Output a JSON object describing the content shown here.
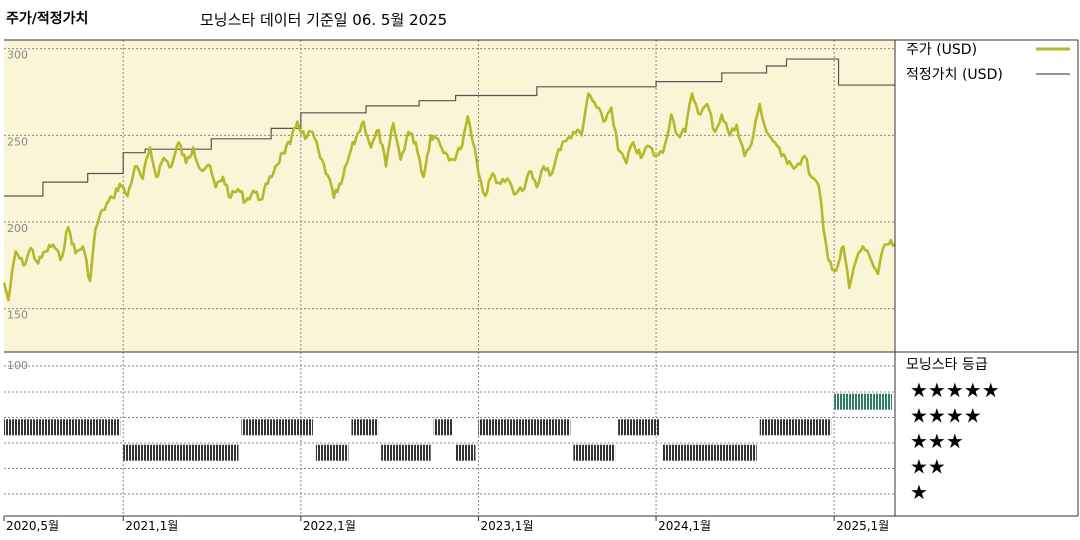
{
  "header": {
    "left_title": "주가/적정가치",
    "main_title": "모닝스타 데이터 기준일 06. 5월 2025"
  },
  "legend": {
    "price_label": "주가 (USD)",
    "fair_label": "적정가치 (USD)",
    "rating_title": "모닝스타 등급"
  },
  "colors": {
    "price": "#b5b82a",
    "fair": "#555555",
    "upper_bg": "#faf5d6",
    "rating_bar": "#333333",
    "rating_five": "#2e7d62"
  },
  "chart_data": {
    "type": "line",
    "x_range": [
      "2020-05-01",
      "2025-05-06"
    ],
    "x_ticks": [
      "2020,5월",
      "2021,1월",
      "2022,1월",
      "2023,1월",
      "2024,1월",
      "2025,1월"
    ],
    "y_range": [
      125,
      305
    ],
    "y_ticks": [
      300,
      250,
      200,
      150
    ],
    "grid": true,
    "legend_position": "top-right",
    "price": [
      [
        "2020-05-01",
        165
      ],
      [
        "2020-05-10",
        155
      ],
      [
        "2020-05-25",
        183
      ],
      [
        "2020-06-10",
        175
      ],
      [
        "2020-06-25",
        185
      ],
      [
        "2020-07-10",
        176
      ],
      [
        "2020-07-25",
        183
      ],
      [
        "2020-08-10",
        187
      ],
      [
        "2020-08-25",
        178
      ],
      [
        "2020-09-10",
        197
      ],
      [
        "2020-09-25",
        182
      ],
      [
        "2020-10-10",
        186
      ],
      [
        "2020-10-25",
        166
      ],
      [
        "2020-11-05",
        196
      ],
      [
        "2020-11-20",
        207
      ],
      [
        "2020-12-10",
        214
      ],
      [
        "2020-12-25",
        222
      ],
      [
        "2021-01-10",
        215
      ],
      [
        "2021-01-25",
        232
      ],
      [
        "2021-02-10",
        225
      ],
      [
        "2021-02-25",
        243
      ],
      [
        "2021-03-10",
        226
      ],
      [
        "2021-03-25",
        237
      ],
      [
        "2021-04-10",
        232
      ],
      [
        "2021-04-25",
        246
      ],
      [
        "2021-05-10",
        234
      ],
      [
        "2021-05-25",
        243
      ],
      [
        "2021-06-10",
        230
      ],
      [
        "2021-06-25",
        233
      ],
      [
        "2021-07-10",
        220
      ],
      [
        "2021-07-25",
        226
      ],
      [
        "2021-08-10",
        214
      ],
      [
        "2021-08-25",
        219
      ],
      [
        "2021-09-10",
        212
      ],
      [
        "2021-09-25",
        218
      ],
      [
        "2021-10-10",
        213
      ],
      [
        "2021-10-25",
        222
      ],
      [
        "2021-11-10",
        232
      ],
      [
        "2021-11-25",
        240
      ],
      [
        "2021-12-10",
        245
      ],
      [
        "2021-12-25",
        258
      ],
      [
        "2022-01-10",
        248
      ],
      [
        "2022-01-25",
        252
      ],
      [
        "2022-02-10",
        237
      ],
      [
        "2022-02-25",
        227
      ],
      [
        "2022-03-10",
        214
      ],
      [
        "2022-03-25",
        222
      ],
      [
        "2022-04-10",
        238
      ],
      [
        "2022-04-25",
        249
      ],
      [
        "2022-05-10",
        258
      ],
      [
        "2022-05-25",
        243
      ],
      [
        "2022-06-10",
        253
      ],
      [
        "2022-06-25",
        232
      ],
      [
        "2022-07-10",
        257
      ],
      [
        "2022-07-25",
        236
      ],
      [
        "2022-08-10",
        252
      ],
      [
        "2022-08-25",
        246
      ],
      [
        "2022-09-10",
        226
      ],
      [
        "2022-09-25",
        250
      ],
      [
        "2022-10-10",
        248
      ],
      [
        "2022-10-25",
        240
      ],
      [
        "2022-11-10",
        236
      ],
      [
        "2022-11-25",
        242
      ],
      [
        "2022-12-10",
        261
      ],
      [
        "2022-12-25",
        242
      ],
      [
        "2023-01-01",
        228
      ],
      [
        "2023-01-15",
        215
      ],
      [
        "2023-01-30",
        228
      ],
      [
        "2023-02-15",
        222
      ],
      [
        "2023-03-01",
        225
      ],
      [
        "2023-03-15",
        216
      ],
      [
        "2023-04-01",
        218
      ],
      [
        "2023-04-15",
        229
      ],
      [
        "2023-05-01",
        220
      ],
      [
        "2023-05-15",
        232
      ],
      [
        "2023-06-01",
        228
      ],
      [
        "2023-06-15",
        242
      ],
      [
        "2023-07-01",
        247
      ],
      [
        "2023-07-15",
        252
      ],
      [
        "2023-08-01",
        250
      ],
      [
        "2023-08-15",
        274
      ],
      [
        "2023-09-01",
        266
      ],
      [
        "2023-09-15",
        258
      ],
      [
        "2023-10-01",
        266
      ],
      [
        "2023-10-15",
        242
      ],
      [
        "2023-11-01",
        234
      ],
      [
        "2023-11-15",
        246
      ],
      [
        "2023-12-01",
        237
      ],
      [
        "2023-12-15",
        244
      ],
      [
        "2024-01-01",
        238
      ],
      [
        "2024-01-15",
        240
      ],
      [
        "2024-02-01",
        262
      ],
      [
        "2024-02-15",
        250
      ],
      [
        "2024-03-01",
        252
      ],
      [
        "2024-03-15",
        274
      ],
      [
        "2024-04-01",
        262
      ],
      [
        "2024-04-15",
        268
      ],
      [
        "2024-05-01",
        252
      ],
      [
        "2024-05-15",
        262
      ],
      [
        "2024-06-01",
        250
      ],
      [
        "2024-06-15",
        256
      ],
      [
        "2024-07-01",
        238
      ],
      [
        "2024-07-15",
        245
      ],
      [
        "2024-08-01",
        268
      ],
      [
        "2024-08-15",
        252
      ],
      [
        "2024-09-01",
        246
      ],
      [
        "2024-09-15",
        238
      ],
      [
        "2024-10-01",
        235
      ],
      [
        "2024-10-15",
        232
      ],
      [
        "2024-11-01",
        238
      ],
      [
        "2024-11-15",
        226
      ],
      [
        "2024-12-01",
        220
      ],
      [
        "2024-12-10",
        196
      ],
      [
        "2024-12-20",
        178
      ],
      [
        "2025-01-05",
        172
      ],
      [
        "2025-01-20",
        186
      ],
      [
        "2025-02-01",
        162
      ],
      [
        "2025-02-15",
        178
      ],
      [
        "2025-03-01",
        186
      ],
      [
        "2025-03-15",
        180
      ],
      [
        "2025-04-01",
        170
      ],
      [
        "2025-04-15",
        187
      ],
      [
        "2025-05-06",
        187
      ]
    ],
    "fair_value": [
      [
        "2020-05-01",
        215
      ],
      [
        "2020-07-20",
        223
      ],
      [
        "2020-10-20",
        228
      ],
      [
        "2021-01-01",
        240
      ],
      [
        "2021-02-15",
        242
      ],
      [
        "2021-07-01",
        248
      ],
      [
        "2021-11-01",
        254
      ],
      [
        "2022-01-01",
        263
      ],
      [
        "2022-05-15",
        267
      ],
      [
        "2022-09-01",
        270
      ],
      [
        "2022-11-15",
        273
      ],
      [
        "2023-05-01",
        278
      ],
      [
        "2024-01-01",
        281
      ],
      [
        "2024-05-15",
        286
      ],
      [
        "2024-08-15",
        290
      ],
      [
        "2024-09-25",
        294
      ],
      [
        "2025-01-10",
        279
      ],
      [
        "2025-05-06",
        279
      ]
    ],
    "rating_scale_label": "100",
    "rating_levels": [
      "★★★★★",
      "★★★★",
      "★★★",
      "★★",
      "★"
    ],
    "rating_segments": [
      {
        "start": "2020-05-01",
        "end": "2021-01-01",
        "stars": 4
      },
      {
        "start": "2021-01-01",
        "end": "2021-09-01",
        "stars": 3
      },
      {
        "start": "2021-09-01",
        "end": "2022-02-01",
        "stars": 4
      },
      {
        "start": "2022-02-01",
        "end": "2022-04-15",
        "stars": 3
      },
      {
        "start": "2022-04-15",
        "end": "2022-06-15",
        "stars": 4
      },
      {
        "start": "2022-06-15",
        "end": "2022-10-01",
        "stars": 3
      },
      {
        "start": "2022-10-01",
        "end": "2022-11-15",
        "stars": 4
      },
      {
        "start": "2022-11-15",
        "end": "2023-01-01",
        "stars": 3
      },
      {
        "start": "2023-01-01",
        "end": "2023-07-15",
        "stars": 4
      },
      {
        "start": "2023-07-15",
        "end": "2023-10-15",
        "stars": 3
      },
      {
        "start": "2023-10-15",
        "end": "2024-01-15",
        "stars": 4
      },
      {
        "start": "2024-01-15",
        "end": "2024-08-01",
        "stars": 3
      },
      {
        "start": "2024-08-01",
        "end": "2025-01-01",
        "stars": 4
      },
      {
        "start": "2025-01-01",
        "end": "2025-05-06",
        "stars": 5
      }
    ]
  }
}
